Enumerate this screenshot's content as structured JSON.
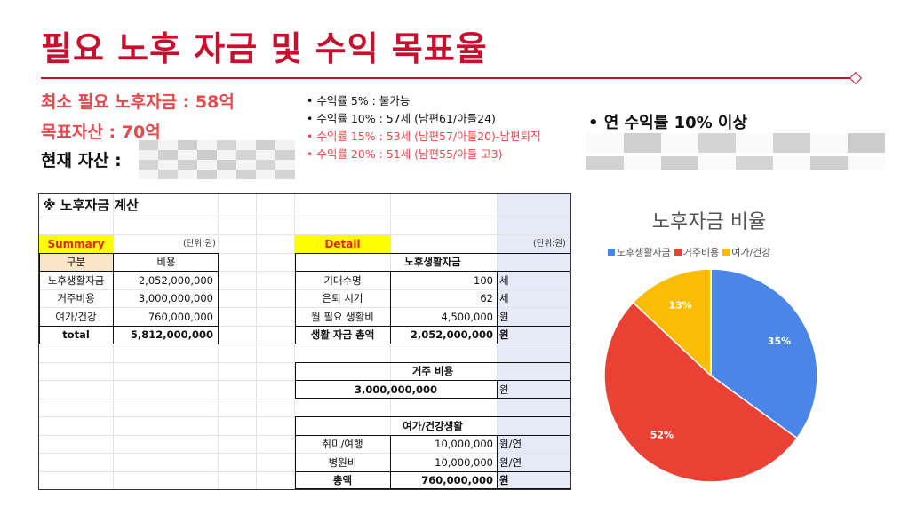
{
  "title": "필요 노후 자금 및 수익 목표율",
  "summary": {
    "min_fund": "최소 필요 노후자금 : 58억",
    "target_asset": "목표자산 : 70억",
    "current_asset": "현재 자산 :"
  },
  "returns": [
    {
      "text": "수익률 5% : 불가능",
      "highlight": false
    },
    {
      "text": "수익률 10% : 57세 (남편61/아들24)",
      "highlight": false
    },
    {
      "text": "수익률 15% : 53세 (남편57/아들20)-남편퇴직",
      "highlight": true
    },
    {
      "text": "수익률 20% : 51세 (남편55/아들 고3)",
      "highlight": true
    }
  ],
  "target_return": "• 연 수익률 10% 이상",
  "colors": {
    "title": "#c8102e",
    "highlight": "#e8474c",
    "pie_blue": "#4a86e8",
    "pie_red": "#e94235",
    "pie_yellow": "#fbbc04"
  },
  "sheet": {
    "heading": "※ 노후자금 계산",
    "summary_label": "Summary",
    "unit_label": "(단위:원)",
    "summary_headers": [
      "구분",
      "비용"
    ],
    "summary_rows": [
      {
        "label": "노후생활자금",
        "value": "2,052,000,000"
      },
      {
        "label": "거주비용",
        "value": "3,000,000,000"
      },
      {
        "label": "여가/건강",
        "value": "760,000,000"
      }
    ],
    "summary_total": {
      "label": "total",
      "value": "5,812,000,000"
    },
    "detail_label": "Detail",
    "retirement": {
      "header": "노후생활자금",
      "rows": [
        {
          "label": "기대수명",
          "value": "100",
          "unit": "세"
        },
        {
          "label": "은퇴 시기",
          "value": "62",
          "unit": "세"
        },
        {
          "label": "월 필요 생활비",
          "value": "4,500,000",
          "unit": "원"
        },
        {
          "label": "생활 자금 총액",
          "value": "2,052,000,000",
          "unit": "원"
        }
      ]
    },
    "housing": {
      "header": "거주 비용",
      "value": "3,000,000,000",
      "unit": "원"
    },
    "leisure": {
      "header": "여가/건강생활",
      "rows": [
        {
          "label": "취미/여행",
          "value": "10,000,000",
          "unit": "원/연"
        },
        {
          "label": "병원비",
          "value": "10,000,000",
          "unit": "원/연"
        },
        {
          "label": "총액",
          "value": "760,000,000",
          "unit": "원"
        }
      ]
    }
  },
  "chart_data": {
    "type": "pie",
    "title": "노후자금 비율",
    "categories": [
      "노후생활자금",
      "거주비용",
      "여가/건강"
    ],
    "values": [
      35,
      52,
      13
    ],
    "labels": [
      "35%",
      "52%",
      "13%"
    ],
    "legend": "top"
  }
}
